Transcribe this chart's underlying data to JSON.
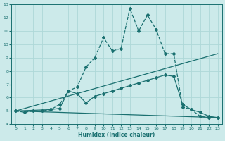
{
  "xlabel": "Humidex (Indice chaleur)",
  "xlim": [
    -0.5,
    23.5
  ],
  "ylim": [
    4,
    13
  ],
  "yticks": [
    4,
    5,
    6,
    7,
    8,
    9,
    10,
    11,
    12,
    13
  ],
  "xticks": [
    0,
    1,
    2,
    3,
    4,
    5,
    6,
    7,
    8,
    9,
    10,
    11,
    12,
    13,
    14,
    15,
    16,
    17,
    18,
    19,
    20,
    21,
    22,
    23
  ],
  "bg_color": "#cceaea",
  "grid_color": "#aed8d8",
  "line_color": "#1a7070",
  "lines": [
    {
      "x": [
        0,
        1,
        2,
        3,
        4,
        5,
        6,
        7,
        8,
        9,
        10,
        11,
        12,
        13,
        14,
        15,
        16,
        17,
        18,
        19,
        20,
        21,
        22,
        23
      ],
      "y": [
        5.0,
        4.9,
        5.0,
        5.0,
        5.1,
        5.5,
        6.5,
        6.8,
        8.3,
        9.0,
        10.5,
        9.5,
        9.7,
        12.7,
        11.0,
        12.2,
        11.1,
        9.3,
        9.3,
        5.3,
        5.1,
        4.6,
        4.5,
        4.5
      ],
      "linestyle": "--",
      "marker": true,
      "linewidth": 0.9
    },
    {
      "x": [
        0,
        4,
        5,
        6,
        7,
        8,
        9,
        10,
        11,
        12,
        13,
        14,
        15,
        16,
        17,
        18,
        19,
        20,
        21,
        22,
        23
      ],
      "y": [
        5.0,
        5.1,
        5.2,
        6.5,
        6.3,
        5.6,
        6.1,
        6.3,
        6.5,
        6.7,
        6.9,
        7.1,
        7.3,
        7.5,
        7.7,
        7.6,
        5.5,
        5.1,
        4.9,
        4.6,
        4.5
      ],
      "linestyle": "-",
      "marker": true,
      "linewidth": 0.9
    },
    {
      "x": [
        0,
        23
      ],
      "y": [
        5.0,
        9.3
      ],
      "linestyle": "-",
      "marker": false,
      "linewidth": 0.9
    },
    {
      "x": [
        0,
        23
      ],
      "y": [
        5.0,
        4.5
      ],
      "linestyle": "-",
      "marker": false,
      "linewidth": 0.9
    }
  ]
}
